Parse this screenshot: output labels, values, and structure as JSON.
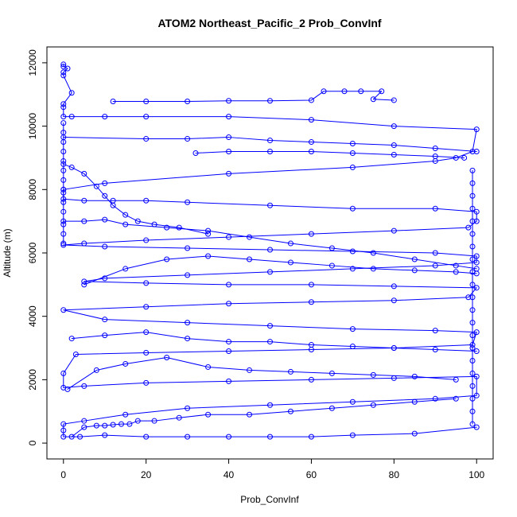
{
  "chart_data": {
    "type": "line",
    "title": "ATOM2 Northeast_Pacific_2 Prob_ConvInf",
    "xlabel": "Prob_ConvInf",
    "ylabel": "Altitude (m)",
    "xlim": [
      -4,
      104
    ],
    "ylim": [
      -500,
      12500
    ],
    "xticks": [
      0,
      20,
      40,
      60,
      80,
      100
    ],
    "yticks": [
      0,
      2000,
      4000,
      6000,
      8000,
      10000,
      12000
    ],
    "grid": false,
    "legend": "none",
    "markers": "open-circle",
    "series": [
      {
        "points": [
          [
            0,
            11950
          ],
          [
            0,
            11880
          ],
          [
            1,
            11820
          ],
          [
            0,
            11700
          ],
          [
            0,
            11600
          ],
          [
            2,
            11050
          ],
          [
            0,
            10700
          ],
          [
            0,
            10600
          ],
          [
            0,
            10300
          ],
          [
            2,
            10300
          ],
          [
            10,
            10300
          ],
          [
            20,
            10300
          ],
          [
            40,
            10300
          ],
          [
            60,
            10200
          ],
          [
            80,
            10000
          ],
          [
            100,
            9900
          ],
          [
            99,
            9200
          ],
          [
            95,
            9000
          ],
          [
            90,
            8900
          ],
          [
            70,
            8700
          ],
          [
            40,
            8500
          ],
          [
            10,
            8200
          ],
          [
            0,
            8000
          ],
          [
            0,
            7900
          ],
          [
            0,
            7700
          ],
          [
            5,
            7650
          ],
          [
            12,
            7650
          ],
          [
            20,
            7650
          ],
          [
            30,
            7600
          ],
          [
            50,
            7500
          ],
          [
            70,
            7400
          ],
          [
            90,
            7400
          ],
          [
            100,
            7300
          ],
          [
            100,
            7000
          ],
          [
            98,
            6800
          ],
          [
            80,
            6700
          ],
          [
            60,
            6600
          ],
          [
            40,
            6500
          ],
          [
            20,
            6400
          ],
          [
            5,
            6300
          ],
          [
            0,
            6250
          ],
          [
            10,
            6200
          ],
          [
            30,
            6150
          ],
          [
            50,
            6100
          ],
          [
            70,
            6050
          ],
          [
            90,
            6000
          ],
          [
            100,
            5900
          ],
          [
            100,
            5700
          ],
          [
            90,
            5600
          ],
          [
            70,
            5500
          ],
          [
            50,
            5400
          ],
          [
            30,
            5300
          ],
          [
            10,
            5200
          ],
          [
            5,
            5100
          ],
          [
            20,
            5050
          ],
          [
            40,
            5000
          ],
          [
            60,
            5000
          ],
          [
            80,
            4950
          ],
          [
            100,
            4900
          ],
          [
            98,
            4600
          ],
          [
            80,
            4500
          ],
          [
            60,
            4450
          ],
          [
            40,
            4400
          ],
          [
            20,
            4300
          ],
          [
            0,
            4200
          ],
          [
            10,
            3900
          ],
          [
            30,
            3800
          ],
          [
            50,
            3700
          ],
          [
            70,
            3600
          ],
          [
            90,
            3550
          ],
          [
            100,
            3500
          ],
          [
            99,
            3100
          ],
          [
            80,
            3000
          ],
          [
            60,
            2950
          ],
          [
            40,
            2900
          ],
          [
            20,
            2850
          ],
          [
            3,
            2800
          ],
          [
            0,
            2200
          ],
          [
            0,
            1750
          ],
          [
            5,
            1800
          ],
          [
            20,
            1900
          ],
          [
            40,
            1950
          ],
          [
            60,
            2000
          ],
          [
            80,
            2050
          ],
          [
            100,
            2100
          ],
          [
            100,
            1500
          ],
          [
            90,
            1400
          ],
          [
            70,
            1300
          ],
          [
            50,
            1200
          ],
          [
            30,
            1100
          ],
          [
            15,
            900
          ],
          [
            5,
            700
          ],
          [
            0,
            600
          ],
          [
            0,
            400
          ],
          [
            0,
            200
          ],
          [
            4,
            200
          ],
          [
            10,
            250
          ],
          [
            20,
            200
          ],
          [
            30,
            200
          ],
          [
            40,
            200
          ],
          [
            50,
            200
          ],
          [
            60,
            200
          ],
          [
            70,
            250
          ],
          [
            85,
            300
          ],
          [
            100,
            500
          ]
        ]
      },
      {
        "points": [
          [
            12,
            10780
          ],
          [
            20,
            10780
          ],
          [
            30,
            10780
          ],
          [
            40,
            10800
          ],
          [
            50,
            10800
          ],
          [
            60,
            10820
          ],
          [
            63,
            11100
          ],
          [
            68,
            11100
          ],
          [
            72,
            11100
          ],
          [
            77,
            11100
          ],
          [
            75,
            10850
          ],
          [
            80,
            10820
          ]
        ]
      },
      {
        "points": [
          [
            0,
            9650
          ],
          [
            20,
            9600
          ],
          [
            30,
            9600
          ],
          [
            40,
            9650
          ],
          [
            50,
            9550
          ],
          [
            60,
            9500
          ],
          [
            70,
            9450
          ],
          [
            80,
            9400
          ],
          [
            90,
            9300
          ],
          [
            100,
            9200
          ]
        ]
      },
      {
        "points": [
          [
            32,
            9150
          ],
          [
            40,
            9200
          ],
          [
            50,
            9200
          ],
          [
            60,
            9200
          ],
          [
            70,
            9150
          ],
          [
            80,
            9100
          ],
          [
            90,
            9050
          ],
          [
            97,
            9000
          ]
        ]
      },
      {
        "points": [
          [
            0,
            7000
          ],
          [
            5,
            7000
          ],
          [
            10,
            7050
          ],
          [
            15,
            6900
          ],
          [
            25,
            6800
          ],
          [
            35,
            6700
          ],
          [
            45,
            6500
          ],
          [
            55,
            6300
          ],
          [
            65,
            6150
          ],
          [
            75,
            6000
          ],
          [
            85,
            5800
          ],
          [
            95,
            5600
          ],
          [
            100,
            5500
          ]
        ]
      },
      {
        "points": [
          [
            0,
            8800
          ],
          [
            2,
            8700
          ],
          [
            5,
            8500
          ],
          [
            8,
            8100
          ],
          [
            10,
            7800
          ],
          [
            12,
            7500
          ],
          [
            15,
            7200
          ],
          [
            18,
            7000
          ],
          [
            22,
            6900
          ],
          [
            28,
            6800
          ],
          [
            35,
            6600
          ]
        ]
      },
      {
        "points": [
          [
            5,
            5000
          ],
          [
            15,
            5500
          ],
          [
            25,
            5800
          ],
          [
            35,
            5900
          ],
          [
            45,
            5800
          ],
          [
            55,
            5700
          ],
          [
            65,
            5600
          ],
          [
            75,
            5500
          ],
          [
            85,
            5450
          ],
          [
            95,
            5400
          ],
          [
            100,
            5350
          ]
        ]
      },
      {
        "points": [
          [
            2,
            3300
          ],
          [
            10,
            3400
          ],
          [
            20,
            3500
          ],
          [
            30,
            3300
          ],
          [
            40,
            3200
          ],
          [
            50,
            3200
          ],
          [
            60,
            3100
          ],
          [
            70,
            3050
          ],
          [
            80,
            3000
          ],
          [
            90,
            2950
          ],
          [
            100,
            2900
          ]
        ]
      },
      {
        "points": [
          [
            1,
            1700
          ],
          [
            8,
            2300
          ],
          [
            15,
            2500
          ],
          [
            25,
            2700
          ],
          [
            35,
            2400
          ],
          [
            45,
            2300
          ],
          [
            55,
            2250
          ],
          [
            65,
            2200
          ],
          [
            75,
            2150
          ],
          [
            85,
            2100
          ],
          [
            95,
            2000
          ]
        ]
      },
      {
        "points": [
          [
            2,
            200
          ],
          [
            5,
            500
          ],
          [
            8,
            550
          ],
          [
            10,
            550
          ],
          [
            12,
            580
          ],
          [
            14,
            600
          ],
          [
            16,
            600
          ],
          [
            18,
            700
          ],
          [
            22,
            700
          ],
          [
            28,
            800
          ],
          [
            35,
            900
          ],
          [
            45,
            900
          ],
          [
            55,
            1000
          ],
          [
            65,
            1100
          ],
          [
            75,
            1200
          ],
          [
            85,
            1300
          ],
          [
            95,
            1400
          ]
        ]
      },
      {
        "points": [
          [
            99,
            8600
          ],
          [
            99,
            8200
          ],
          [
            99,
            7800
          ],
          [
            99,
            7400
          ],
          [
            99,
            7000
          ],
          [
            99,
            6600
          ],
          [
            99,
            6200
          ],
          [
            99,
            5800
          ],
          [
            99,
            5400
          ],
          [
            99,
            5000
          ],
          [
            99,
            4600
          ],
          [
            99,
            4200
          ],
          [
            99,
            3800
          ],
          [
            99,
            3400
          ],
          [
            99,
            3000
          ],
          [
            99,
            2600
          ],
          [
            99,
            2200
          ],
          [
            99,
            1800
          ],
          [
            99,
            1400
          ],
          [
            99,
            1000
          ],
          [
            99,
            600
          ]
        ]
      },
      {
        "points": [
          [
            0,
            10100
          ],
          [
            0,
            9800
          ],
          [
            0,
            9500
          ],
          [
            0,
            9200
          ],
          [
            0,
            8900
          ],
          [
            0,
            8600
          ],
          [
            0,
            8300
          ],
          [
            0,
            8000
          ],
          [
            0,
            7600
          ],
          [
            0,
            7300
          ],
          [
            0,
            6900
          ],
          [
            0,
            6600
          ],
          [
            0,
            6300
          ]
        ]
      }
    ],
    "colors": {
      "series": "#0000ff",
      "axis": "#000000",
      "background": "#ffffff"
    }
  }
}
